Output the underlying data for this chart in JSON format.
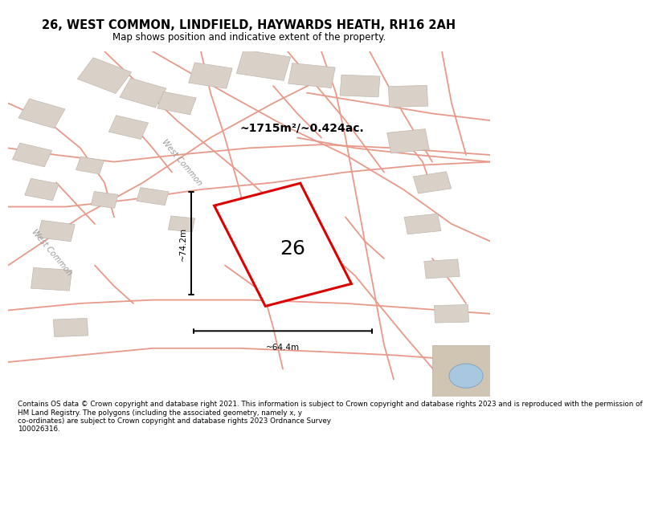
{
  "title": "26, WEST COMMON, LINDFIELD, HAYWARDS HEATH, RH16 2AH",
  "subtitle": "Map shows position and indicative extent of the property.",
  "footer": "Contains OS data © Crown copyright and database right 2021. This information is subject to Crown copyright and database rights 2023 and is reproduced with the permission of\nHM Land Registry. The polygons (including the associated geometry, namely x, y\nco-ordinates) are subject to Crown copyright and database rights 2023 Ordnance Survey\n100026316.",
  "map_bg": "#f5f0ea",
  "road_color": "#e8998a",
  "building_color": "#d9d0c8",
  "building_edge": "#c0b8b0",
  "title_bg": "#ffffff",
  "footer_bg": "#ffffff",
  "property_color": "#dd0000",
  "area_text": "~1715m²/~0.424ac.",
  "label_26": "26",
  "dim_height": "~74.2m",
  "dim_width": "~64.4m",
  "road_label": "West Common"
}
